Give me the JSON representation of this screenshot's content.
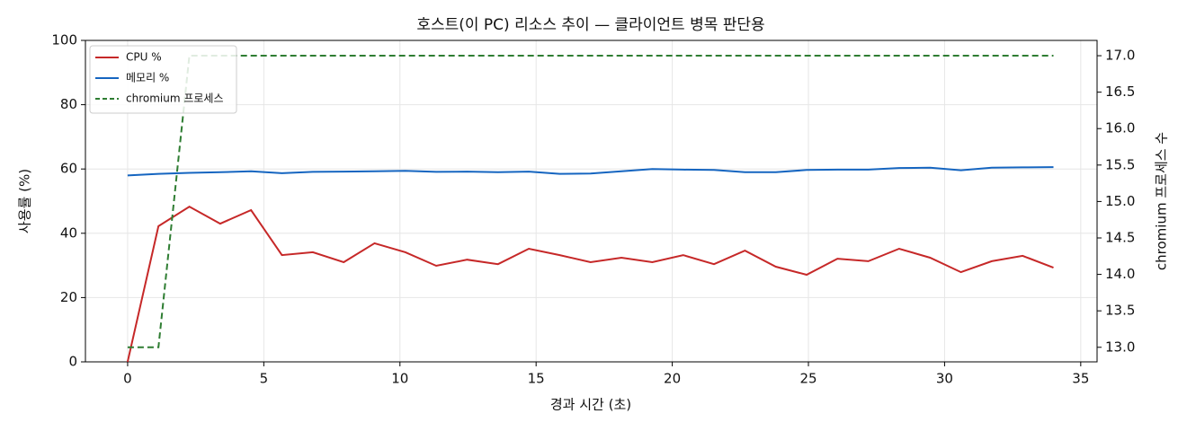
{
  "chart_data": {
    "type": "line",
    "title": "호스트(이 PC) 리소스 추이 — 클라이언트 병목 판단용",
    "x_label": "경과 시간 (초)",
    "y_label": "사용률 (%)",
    "y2_label": "chromium 프로세스 수",
    "x": [
      0,
      1.133,
      2.267,
      3.4,
      4.533,
      5.667,
      6.8,
      7.933,
      9.067,
      10.2,
      11.333,
      12.467,
      13.6,
      14.733,
      15.867,
      17,
      18.133,
      19.267,
      20.4,
      21.533,
      22.667,
      23.8,
      24.933,
      26.067,
      27.2,
      28.333,
      29.467,
      30.6,
      31.733,
      32.867,
      34
    ],
    "series": [
      {
        "name": "CPU %",
        "color": "#c62828",
        "linestyle": "solid",
        "values": [
          0,
          42.2,
          48.3,
          43.0,
          47.2,
          33.2,
          34.1,
          31.0,
          36.9,
          34.1,
          29.9,
          31.8,
          30.4,
          35.2,
          33.2,
          31.0,
          32.4,
          31.0,
          33.2,
          30.4,
          34.6,
          29.6,
          27.1,
          32.1,
          31.3,
          35.2,
          32.4,
          27.9,
          31.3,
          33.0,
          29.3
        ]
      },
      {
        "name": "메모리 %",
        "color": "#1565c0",
        "linestyle": "solid",
        "values": [
          58.0,
          58.5,
          58.8,
          59.0,
          59.3,
          58.7,
          59.1,
          59.2,
          59.3,
          59.4,
          59.1,
          59.2,
          59.0,
          59.2,
          58.5,
          58.6,
          59.3,
          60.0,
          59.8,
          59.7,
          59.0,
          59.0,
          59.7,
          59.8,
          59.8,
          60.3,
          60.4,
          59.6,
          60.4,
          60.5,
          60.6
        ]
      },
      {
        "name": "chromium 프로세스",
        "color": "#2e7d32",
        "linestyle": "dashed",
        "axis": "y2",
        "values": [
          13,
          13,
          17,
          17,
          17,
          17,
          17,
          17,
          17,
          17,
          17,
          17,
          17,
          17,
          17,
          17,
          17,
          17,
          17,
          17,
          17,
          17,
          17,
          17,
          17,
          17,
          17,
          17,
          17,
          17,
          17
        ]
      }
    ],
    "xlim": [
      -1.55,
      35.6
    ],
    "xticks": [
      0,
      5,
      10,
      15,
      20,
      25,
      30,
      35
    ],
    "ylim": [
      0,
      100
    ],
    "yticks": [
      0,
      20,
      40,
      60,
      80,
      100
    ],
    "y2lim": [
      12.8,
      17.21
    ],
    "y2ticks": [
      {
        "value": 13,
        "label": "13.0"
      },
      13.5,
      {
        "value": 14,
        "label": "14.0"
      },
      14.5,
      {
        "value": 15,
        "label": "15.0"
      },
      15.5,
      {
        "value": 16,
        "label": "16.0"
      },
      16.5,
      {
        "value": 17,
        "label": "17.0"
      }
    ],
    "grid": true,
    "legend": "upper left"
  }
}
